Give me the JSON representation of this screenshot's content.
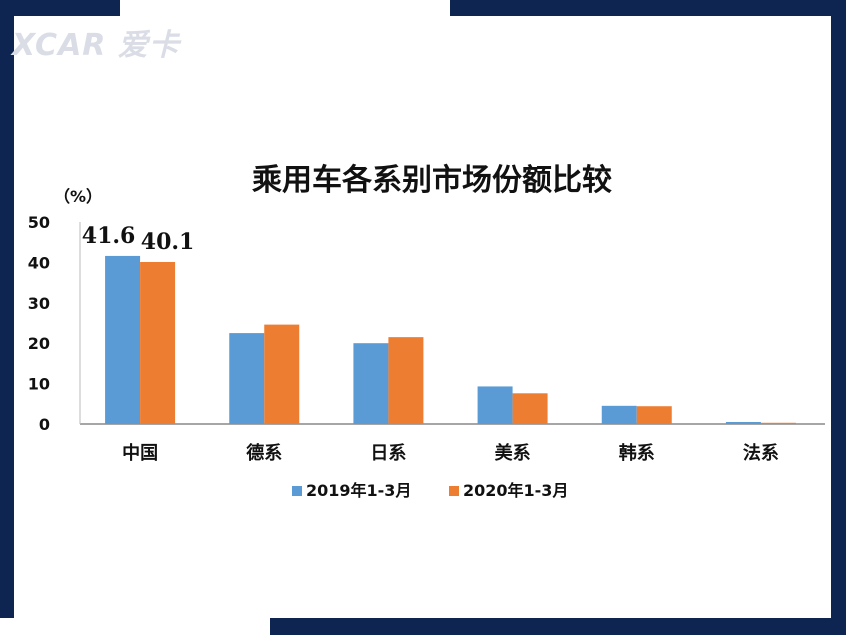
{
  "logo_text": "XCAR 爱卡",
  "chart_data": {
    "type": "bar",
    "title": "乘用车各系别市场份额比较",
    "ylabel": "（%）",
    "xlabel": "",
    "ylim": [
      0,
      50
    ],
    "yticks": [
      0,
      10,
      20,
      30,
      40,
      50
    ],
    "categories": [
      "中国",
      "德系",
      "日系",
      "美系",
      "韩系",
      "法系"
    ],
    "series": [
      {
        "name": "2019年1-3月",
        "color": "#5b9bd5",
        "values": [
          41.6,
          22.5,
          20.0,
          9.3,
          4.5,
          0.5
        ]
      },
      {
        "name": "2020年1-3月",
        "color": "#ed7d31",
        "values": [
          40.1,
          24.6,
          21.5,
          7.6,
          4.4,
          0.3
        ]
      }
    ],
    "data_labels": [
      {
        "series": 0,
        "index": 0,
        "text": "41.6"
      },
      {
        "series": 1,
        "index": 0,
        "text": "40.1"
      }
    ],
    "legend_position": "bottom",
    "grid": false
  }
}
